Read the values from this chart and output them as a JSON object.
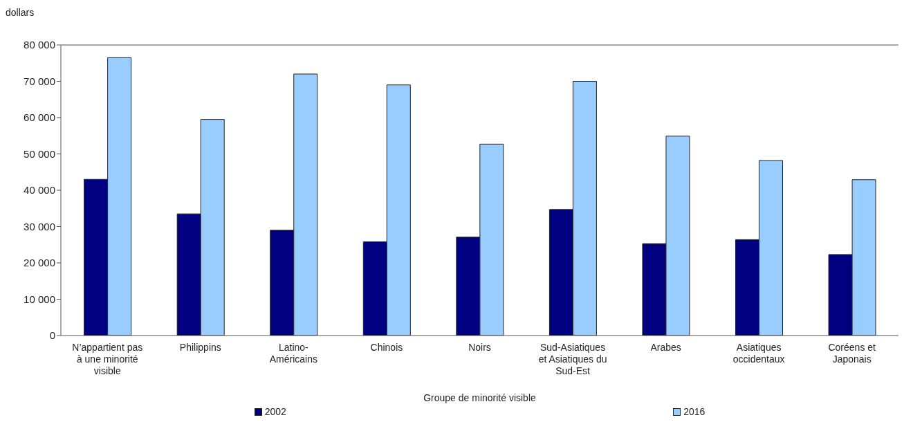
{
  "chart_data": {
    "type": "bar",
    "ylabel": "dollars",
    "xlabel": "Groupe de minorité visible",
    "categories": [
      "N’appartient pas à une minorité visible",
      "Philippins",
      "Latino-Américains",
      "Chinois",
      "Noirs",
      "Sud-Asiatiques et Asiatiques du Sud-Est",
      "Arabes",
      "Asiatiques occidentaux",
      "Coréens et Japonais"
    ],
    "series": [
      {
        "name": "2002",
        "color": "#000080",
        "values": [
          43000,
          33500,
          29000,
          25800,
          27100,
          34700,
          25300,
          26400,
          22300
        ]
      },
      {
        "name": "2016",
        "color": "#99ccff",
        "values": [
          76500,
          59500,
          72000,
          69000,
          52700,
          70000,
          54900,
          48200,
          42900
        ]
      }
    ],
    "ylim": [
      0,
      80000
    ],
    "yticks": [
      0,
      10000,
      20000,
      30000,
      40000,
      50000,
      60000,
      70000,
      80000
    ],
    "grid": false,
    "legend": "bottom"
  }
}
